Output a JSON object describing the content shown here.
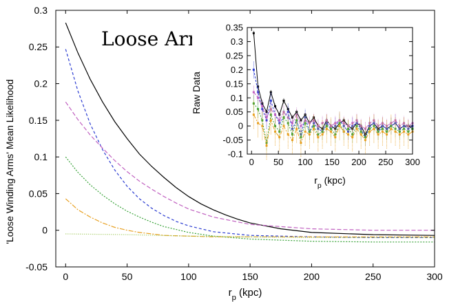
{
  "chart_data": [
    {
      "type": "line",
      "title": "Loose Arms",
      "xlabel": "r_p (kpc)",
      "ylabel": "'Loose Winding Arms' Mean Likelihood",
      "xlim": [
        -8,
        300
      ],
      "ylim": [
        -0.05,
        0.3
      ],
      "xticks": [
        0,
        50,
        100,
        150,
        200,
        250,
        300
      ],
      "yticks": [
        -0.05,
        0,
        0.05,
        0.1,
        0.15,
        0.2,
        0.25,
        0.3
      ],
      "ytick_labels": [
        "-0.05",
        "0",
        "0.05",
        "0.1",
        "0.15",
        "0.2",
        "0.25",
        "0.3"
      ],
      "grid": false,
      "series": [
        {
          "color": "#000000",
          "dash": "solid",
          "x": [
            0,
            10,
            20,
            30,
            40,
            50,
            60,
            70,
            80,
            90,
            100,
            110,
            120,
            130,
            140,
            150,
            175,
            200,
            250,
            300
          ],
          "y": [
            0.283,
            0.242,
            0.206,
            0.175,
            0.148,
            0.125,
            0.104,
            0.087,
            0.072,
            0.058,
            0.046,
            0.036,
            0.028,
            0.021,
            0.015,
            0.01,
            0.002,
            -0.003,
            -0.006,
            -0.007
          ]
        },
        {
          "color": "#2a3bd1",
          "dash": "4,3",
          "x": [
            0,
            10,
            20,
            30,
            40,
            50,
            60,
            70,
            80,
            90,
            100,
            120,
            150,
            200,
            250,
            300
          ],
          "y": [
            0.247,
            0.19,
            0.145,
            0.11,
            0.082,
            0.06,
            0.043,
            0.03,
            0.02,
            0.012,
            0.006,
            -0.002,
            -0.007,
            -0.009,
            -0.01,
            -0.01
          ]
        },
        {
          "color": "#c060c0",
          "dash": "6,3",
          "x": [
            0,
            10,
            20,
            30,
            40,
            50,
            60,
            70,
            80,
            90,
            100,
            120,
            150,
            200,
            250,
            300
          ],
          "y": [
            0.175,
            0.151,
            0.13,
            0.112,
            0.095,
            0.08,
            0.067,
            0.056,
            0.046,
            0.037,
            0.029,
            0.018,
            0.008,
            0.002,
            0.0,
            0.0
          ]
        },
        {
          "color": "#33a033",
          "dash": "2,2",
          "x": [
            0,
            10,
            20,
            30,
            40,
            50,
            60,
            70,
            80,
            90,
            100,
            120,
            150,
            200,
            250,
            300
          ],
          "y": [
            0.1,
            0.079,
            0.062,
            0.048,
            0.036,
            0.026,
            0.018,
            0.011,
            0.005,
            0.001,
            -0.003,
            -0.008,
            -0.012,
            -0.015,
            -0.016,
            -0.016
          ]
        },
        {
          "color": "#e8a020",
          "dash": "7,2,2,2",
          "x": [
            0,
            10,
            20,
            30,
            40,
            50,
            60,
            70,
            80,
            100,
            120,
            150,
            200,
            250,
            300
          ],
          "y": [
            0.043,
            0.028,
            0.018,
            0.01,
            0.004,
            0.0,
            -0.003,
            -0.005,
            -0.007,
            -0.008,
            -0.009,
            -0.009,
            -0.009,
            -0.009,
            -0.009
          ]
        },
        {
          "color": "#8fbf3f",
          "dash": "1,2",
          "x": [
            0,
            50,
            100,
            150,
            200,
            250,
            300
          ],
          "y": [
            -0.005,
            -0.006,
            -0.008,
            -0.009,
            -0.01,
            -0.01,
            -0.01
          ]
        }
      ]
    },
    {
      "type": "line",
      "title": "",
      "xlabel": "r_p (kpc)",
      "ylabel": "Raw Data",
      "xlim": [
        -8,
        300
      ],
      "ylim": [
        -0.1,
        0.35
      ],
      "xticks": [
        0,
        50,
        100,
        150,
        200,
        250,
        300
      ],
      "yticks": [
        -0.1,
        -0.05,
        0,
        0.05,
        0.1,
        0.15,
        0.2,
        0.25,
        0.3,
        0.35
      ],
      "ytick_labels": [
        "-0.1",
        "-0.05",
        "0",
        "0.05",
        "0.1",
        "0.15",
        "0.2",
        "0.25",
        "0.3",
        "0.35"
      ],
      "grid": false,
      "series": [
        {
          "color": "#000000",
          "dash": "solid",
          "err": 0.01,
          "x": [
            4,
            12,
            20,
            28,
            36,
            44,
            52,
            60,
            68,
            76,
            84,
            92,
            100,
            108,
            116,
            124,
            132,
            140,
            148,
            156,
            164,
            172,
            180,
            188,
            196,
            204,
            212,
            220,
            228,
            236,
            244,
            252,
            260,
            268,
            276,
            284,
            292,
            300
          ],
          "y": [
            0.33,
            0.14,
            0.08,
            0.05,
            0.12,
            0.07,
            0.04,
            0.09,
            0.06,
            0.03,
            0.05,
            0.02,
            0.04,
            0.01,
            0.03,
            0.0,
            -0.01,
            0.02,
            0.0,
            -0.01,
            0.01,
            0.02,
            0.0,
            -0.01,
            0.01,
            0.0,
            -0.03,
            0.0,
            0.01,
            -0.01,
            0.0,
            -0.01,
            0.0,
            0.01,
            -0.01,
            0.0,
            0.0,
            -0.01
          ]
        },
        {
          "color": "#2a3bd1",
          "dash": "3,2",
          "err": 0.03,
          "x": [
            4,
            12,
            20,
            28,
            36,
            44,
            52,
            60,
            68,
            76,
            84,
            92,
            100,
            108,
            116,
            124,
            132,
            140,
            148,
            156,
            164,
            172,
            180,
            188,
            196,
            204,
            212,
            220,
            228,
            236,
            244,
            252,
            260,
            268,
            276,
            284,
            292,
            300
          ],
          "y": [
            0.2,
            0.12,
            0.06,
            0.02,
            0.09,
            0.04,
            0.01,
            0.03,
            0.05,
            -0.01,
            0.02,
            -0.03,
            0.03,
            -0.02,
            0.01,
            -0.01,
            -0.02,
            0.01,
            -0.01,
            0.0,
            0.02,
            0.0,
            -0.02,
            0.0,
            0.01,
            -0.01,
            -0.04,
            0.0,
            0.01,
            -0.02,
            0.0,
            -0.01,
            0.0,
            0.01,
            -0.01,
            0.0,
            -0.01,
            0.0
          ]
        },
        {
          "color": "#c060c0",
          "dash": "5,2",
          "err": 0.025,
          "x": [
            4,
            12,
            20,
            28,
            36,
            44,
            52,
            60,
            68,
            76,
            84,
            92,
            100,
            108,
            116,
            124,
            132,
            140,
            148,
            156,
            164,
            172,
            180,
            188,
            196,
            204,
            212,
            220,
            228,
            236,
            244,
            252,
            260,
            268,
            276,
            284,
            292,
            300
          ],
          "y": [
            0.12,
            0.1,
            0.07,
            0.03,
            0.06,
            0.04,
            0.02,
            0.05,
            0.03,
            0.01,
            0.04,
            0.0,
            0.02,
            0.01,
            0.02,
            0.0,
            0.01,
            0.02,
            0.0,
            0.01,
            0.02,
            0.01,
            0.0,
            0.01,
            0.02,
            0.0,
            -0.01,
            0.01,
            0.02,
            0.0,
            0.01,
            0.0,
            0.01,
            0.02,
            0.0,
            0.01,
            0.0,
            0.01
          ]
        },
        {
          "color": "#33a033",
          "dash": "2,2",
          "err": 0.03,
          "x": [
            4,
            12,
            20,
            28,
            36,
            44,
            52,
            60,
            68,
            76,
            84,
            92,
            100,
            108,
            116,
            124,
            132,
            140,
            148,
            156,
            164,
            172,
            180,
            188,
            196,
            204,
            212,
            220,
            228,
            236,
            244,
            252,
            260,
            268,
            276,
            284,
            292,
            300
          ],
          "y": [
            0.08,
            0.06,
            0.02,
            -0.06,
            0.04,
            0.0,
            -0.02,
            0.03,
            0.01,
            -0.03,
            0.02,
            -0.04,
            0.01,
            -0.02,
            0.0,
            -0.03,
            -0.02,
            0.0,
            -0.01,
            -0.03,
            0.01,
            -0.02,
            -0.01,
            -0.03,
            0.0,
            -0.02,
            -0.04,
            -0.01,
            0.0,
            -0.02,
            -0.01,
            -0.02,
            0.0,
            -0.01,
            -0.02,
            -0.01,
            -0.02,
            -0.01
          ]
        },
        {
          "color": "#e8a020",
          "dash": "6,2,2,2",
          "err": 0.05,
          "x": [
            4,
            12,
            20,
            28,
            36,
            44,
            52,
            60,
            68,
            76,
            84,
            92,
            100,
            108,
            116,
            124,
            132,
            140,
            148,
            156,
            164,
            172,
            180,
            188,
            196,
            204,
            212,
            220,
            228,
            236,
            244,
            252,
            260,
            268,
            276,
            284,
            292,
            300
          ],
          "y": [
            0.04,
            0.01,
            0.0,
            -0.07,
            0.02,
            -0.02,
            -0.04,
            0.0,
            -0.03,
            -0.05,
            -0.01,
            -0.06,
            -0.02,
            -0.03,
            -0.01,
            -0.04,
            -0.03,
            -0.01,
            -0.02,
            -0.04,
            0.0,
            -0.02,
            -0.03,
            -0.04,
            -0.01,
            -0.03,
            -0.05,
            -0.02,
            -0.01,
            -0.03,
            -0.02,
            -0.03,
            -0.01,
            -0.02,
            -0.03,
            -0.02,
            -0.03,
            -0.02
          ]
        }
      ]
    }
  ]
}
